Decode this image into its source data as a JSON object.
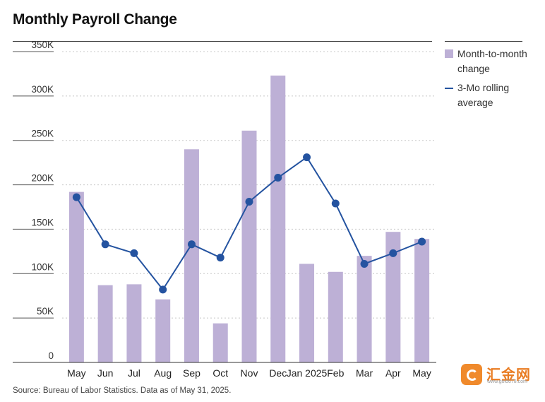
{
  "title": "Monthly Payroll Change",
  "source": "Source: Bureau of Labor Statistics. Data as of May 31, 2025.",
  "legend": {
    "bars": "Month-to-month change",
    "line": "3-Mo rolling average"
  },
  "watermark": {
    "text": "汇金网",
    "sub": "www.gold678.com"
  },
  "colors": {
    "bar": "#bdb0d6",
    "line": "#2453a0",
    "grid": "#c8c8c8"
  },
  "chart_data": {
    "type": "bar",
    "categories": [
      "May",
      "Jun",
      "Jul",
      "Aug",
      "Sep",
      "Oct",
      "Nov",
      "Dec",
      "Jan 2025",
      "Feb",
      "Mar",
      "Apr",
      "May"
    ],
    "series": [
      {
        "name": "Month-to-month change",
        "type": "bar",
        "values": [
          192,
          87,
          88,
          71,
          240,
          44,
          261,
          323,
          111,
          102,
          120,
          147,
          139
        ]
      },
      {
        "name": "3-Mo rolling average",
        "type": "line",
        "values": [
          186,
          133,
          123,
          82,
          133,
          118,
          181,
          208,
          231,
          179,
          111,
          123,
          136
        ]
      }
    ],
    "y_ticks": [
      "0",
      "50K",
      "100K",
      "150K",
      "200K",
      "250K",
      "300K",
      "350K"
    ],
    "ylim": [
      0,
      350
    ],
    "unit": "thousands",
    "grid": "horizontal dashed",
    "legend_position": "right"
  }
}
